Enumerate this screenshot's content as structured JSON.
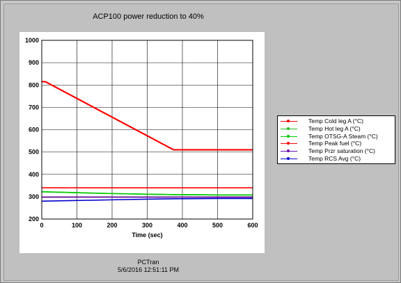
{
  "window": {
    "title": "ACP100 power reduction to 40%",
    "footer_app": "PCTran",
    "footer_timestamp": "5/6/2016 12:51:11 PM"
  },
  "chart_data": {
    "type": "line",
    "title": "ACP100 power reduction to 40%",
    "xlabel": "Time (sec)",
    "ylabel": "",
    "xlim": [
      0,
      600
    ],
    "ylim": [
      200,
      1000
    ],
    "xticks": [
      0,
      100,
      200,
      300,
      400,
      500,
      600
    ],
    "yticks": [
      200,
      300,
      400,
      500,
      600,
      700,
      800,
      900,
      1000
    ],
    "grid": true,
    "legend_position": "right",
    "series": [
      {
        "name": "Temp Cold leg A (°C)",
        "color": "#ff0000",
        "x": [
          0,
          600
        ],
        "y": [
          340,
          340
        ]
      },
      {
        "name": "Temp Hot leg A (°C)",
        "color": "#22bb22",
        "x": [
          0,
          100,
          200,
          300,
          400,
          500,
          600
        ],
        "y": [
          322,
          318,
          314,
          311,
          309,
          308,
          308
        ]
      },
      {
        "name": "Temp OTSG-A Steam (°C)",
        "color": "#00cc00",
        "x": [
          0,
          100,
          200,
          300,
          400,
          500,
          600
        ],
        "y": [
          322,
          318,
          314,
          311,
          309,
          308,
          308
        ]
      },
      {
        "name": "Temp Peak fuel (°C)",
        "color": "#ff0000",
        "x": [
          0,
          10,
          375,
          600
        ],
        "y": [
          815,
          815,
          510,
          510
        ]
      },
      {
        "name": "Temp Przr saturation (°C)",
        "color": "#6a0dad",
        "x": [
          0,
          600
        ],
        "y": [
          298,
          298
        ]
      },
      {
        "name": "Temp RCS Avg (°C)",
        "color": "#0000cc",
        "x": [
          0,
          100,
          200,
          300,
          400,
          500,
          600
        ],
        "y": [
          280,
          283,
          286,
          289,
          291,
          292,
          292
        ]
      }
    ]
  }
}
